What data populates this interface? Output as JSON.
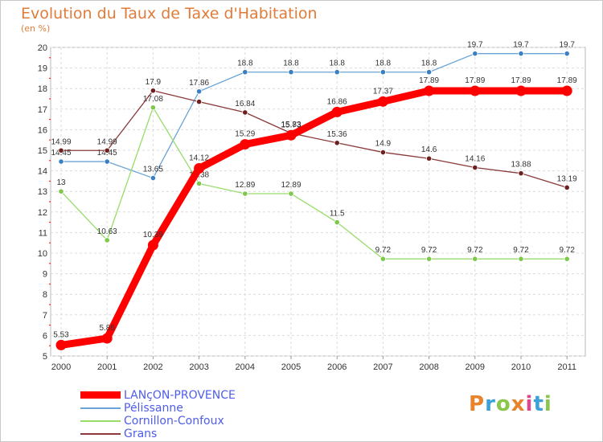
{
  "header": {
    "title": "Evolution du Taux de Taxe d'Habitation",
    "subtitle": "(en %)"
  },
  "logo": {
    "text": "Proxiti",
    "colors": [
      "#e9832b",
      "#3ba1d7",
      "#89c64a",
      "#e9832b",
      "#d94a8c",
      "#3ba1d7",
      "#89c64a"
    ]
  },
  "chart_data": {
    "type": "line",
    "title": "Evolution du Taux de Taxe d'Habitation",
    "subtitle": "(en %)",
    "x": [
      "2000",
      "2001",
      "2002",
      "2003",
      "2004",
      "2005",
      "2006",
      "2007",
      "2008",
      "2009",
      "2010",
      "2011"
    ],
    "ylim": [
      5,
      20
    ],
    "yticks": [
      5,
      6,
      7,
      8,
      9,
      10,
      11,
      12,
      13,
      14,
      15,
      16,
      17,
      18,
      19,
      20
    ],
    "grid": true,
    "legend_position": "bottom-left",
    "series": [
      {
        "name": "Pélissanne",
        "color": "#6aa3d5",
        "marker": "#3a7fc1",
        "values": [
          14.45,
          14.45,
          13.65,
          17.86,
          18.8,
          18.8,
          18.8,
          18.8,
          18.8,
          19.7,
          19.7,
          19.7
        ],
        "labels": [
          "14.45",
          "14.45",
          "13.65",
          "17.86",
          "18.8",
          "18.8",
          "18.8",
          "18.8",
          "18.8",
          "19.7",
          "19.7",
          "19.7"
        ]
      },
      {
        "name": "Cornillon-Confoux",
        "color": "#98dc6a",
        "marker": "#7dc74a",
        "values": [
          13,
          10.63,
          17.08,
          13.38,
          12.89,
          12.89,
          11.5,
          9.72,
          9.72,
          9.72,
          9.72,
          9.72
        ],
        "labels": [
          "13",
          "10.63",
          "17.08",
          "13.38",
          "12.89",
          "12.89",
          "11.5",
          "9.72",
          "9.72",
          "9.72",
          "9.72",
          "9.72"
        ]
      },
      {
        "name": "Grans",
        "color": "#8a3a3a",
        "marker": "#6e2020",
        "values": [
          14.99,
          14.99,
          17.9,
          17.36,
          16.84,
          15.83,
          15.36,
          14.9,
          14.6,
          14.16,
          13.88,
          13.19
        ],
        "labels": [
          "14.99",
          "14.99",
          "17.9",
          "",
          "16.84",
          "15.83",
          "15.36",
          "14.9",
          "14.6",
          "14.16",
          "13.88",
          "13.19"
        ]
      },
      {
        "name": "LANçON-PROVENCE",
        "color": "#ff0000",
        "marker": "#ff0000",
        "values": [
          5.53,
          5.86,
          10.39,
          14.12,
          15.29,
          15.73,
          16.86,
          17.37,
          17.89,
          17.89,
          17.89,
          17.89
        ],
        "labels": [
          "5.53",
          "5.86",
          "10.39",
          "14.12",
          "15.29",
          "15.73",
          "16.86",
          "17.37",
          "17.89",
          "17.89",
          "17.89",
          "17.89"
        ]
      }
    ],
    "legend": [
      {
        "name": "LANçON-PROVENCE",
        "color": "#ff0000",
        "thick": true
      },
      {
        "name": "Pélissanne",
        "color": "#6aa3d5",
        "thick": false
      },
      {
        "name": "Cornillon-Confoux",
        "color": "#98dc6a",
        "thick": false
      },
      {
        "name": "Grans",
        "color": "#8a3a3a",
        "thick": false
      }
    ]
  }
}
